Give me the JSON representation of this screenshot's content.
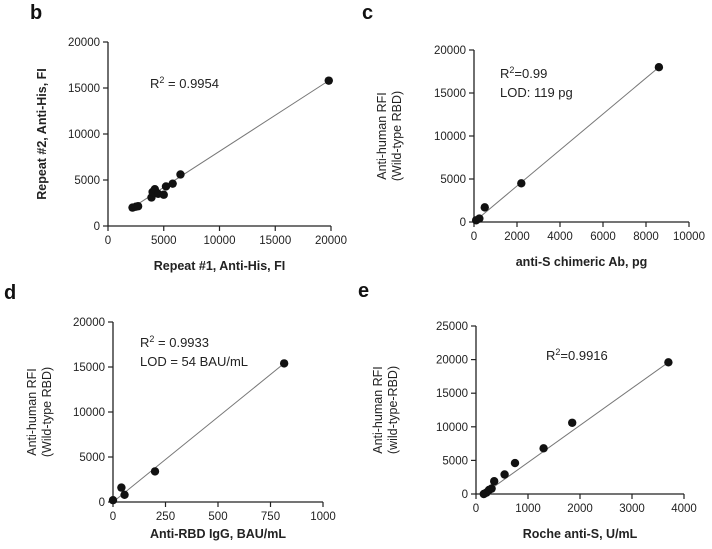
{
  "chart_data": [
    {
      "id": "b",
      "panel_label": "b",
      "type": "scatter",
      "xlabel": "Repeat #1, Anti-His, FI",
      "ylabel": "Repeat #2, Anti-His, FI",
      "xlim": [
        0,
        20000
      ],
      "ylim": [
        0,
        20000
      ],
      "x_ticks": [
        0,
        5000,
        10000,
        15000,
        20000
      ],
      "y_ticks": [
        0,
        5000,
        10000,
        15000,
        20000
      ],
      "x_tick_labels": [
        "0",
        "5000",
        "10000",
        "15000",
        "20000"
      ],
      "y_tick_labels": [
        "0",
        "5000",
        "10000",
        "15000",
        "20000"
      ],
      "annotations": [
        "R2 = 0.9954"
      ],
      "fit_line": [
        [
          2000,
          1850
        ],
        [
          19800,
          15800
        ]
      ],
      "points": [
        {
          "x": 2200,
          "y": 2000
        },
        {
          "x": 2500,
          "y": 2100
        },
        {
          "x": 2700,
          "y": 2150
        },
        {
          "x": 3900,
          "y": 3100
        },
        {
          "x": 4000,
          "y": 3700
        },
        {
          "x": 4200,
          "y": 4000
        },
        {
          "x": 4500,
          "y": 3500
        },
        {
          "x": 5000,
          "y": 3400
        },
        {
          "x": 5200,
          "y": 4300
        },
        {
          "x": 5800,
          "y": 4600
        },
        {
          "x": 6500,
          "y": 5600
        },
        {
          "x": 19800,
          "y": 15800
        }
      ]
    },
    {
      "id": "c",
      "panel_label": "c",
      "type": "scatter",
      "xlabel": "anti-S chimeric Ab, pg",
      "ylabel": "Anti-human RFI (Wild-type RBD)",
      "ylabel_lines": [
        "Anti-human RFI",
        "(Wild-type RBD)"
      ],
      "xlim": [
        0,
        10000
      ],
      "ylim": [
        0,
        20000
      ],
      "x_ticks": [
        0,
        2000,
        4000,
        6000,
        8000,
        10000
      ],
      "y_ticks": [
        0,
        5000,
        10000,
        15000,
        20000
      ],
      "x_tick_labels": [
        "0",
        "2000",
        "4000",
        "6000",
        "8000",
        "10000"
      ],
      "y_tick_labels": [
        "0",
        "5000",
        "10000",
        "15000",
        "20000"
      ],
      "annotations": [
        "R2=0.99",
        "LOD: 119 pg"
      ],
      "fit_line": [
        [
          0,
          0
        ],
        [
          8600,
          18000
        ]
      ],
      "points": [
        {
          "x": 100,
          "y": 200
        },
        {
          "x": 250,
          "y": 400
        },
        {
          "x": 500,
          "y": 1700
        },
        {
          "x": 2200,
          "y": 4500
        },
        {
          "x": 8600,
          "y": 18000
        }
      ]
    },
    {
      "id": "d",
      "panel_label": "d",
      "type": "scatter",
      "xlabel": "Anti-RBD IgG, BAU/mL",
      "ylabel": "Anti-human RFI (Wild-type RBD)",
      "ylabel_lines": [
        "Anti-human RFI",
        "(Wild-type RBD)"
      ],
      "xlim": [
        0,
        1000
      ],
      "ylim": [
        0,
        20000
      ],
      "x_ticks": [
        0,
        250,
        500,
        750,
        1000
      ],
      "y_ticks": [
        0,
        5000,
        10000,
        15000,
        20000
      ],
      "x_tick_labels": [
        "0",
        "250",
        "500",
        "750",
        "1000"
      ],
      "y_tick_labels": [
        "0",
        "5000",
        "10000",
        "15000",
        "20000"
      ],
      "annotations": [
        "R2 = 0.9933",
        "LOD = 54 BAU/mL"
      ],
      "fit_line": [
        [
          0,
          0
        ],
        [
          815,
          15400
        ]
      ],
      "points": [
        {
          "x": 0,
          "y": 200
        },
        {
          "x": 40,
          "y": 1600
        },
        {
          "x": 55,
          "y": 800
        },
        {
          "x": 200,
          "y": 3400
        },
        {
          "x": 815,
          "y": 15400
        }
      ]
    },
    {
      "id": "e",
      "panel_label": "e",
      "type": "scatter",
      "xlabel": "Roche anti-S, U/mL",
      "ylabel": "Anti-human RFI (wild-type-RBD)",
      "ylabel_lines": [
        "Anti-human RFI",
        "(wild-type-RBD)"
      ],
      "xlim": [
        0,
        4000
      ],
      "ylim": [
        0,
        25000
      ],
      "x_ticks": [
        0,
        1000,
        2000,
        3000,
        4000
      ],
      "y_ticks": [
        0,
        5000,
        10000,
        15000,
        20000,
        25000
      ],
      "x_tick_labels": [
        "0",
        "1000",
        "2000",
        "3000",
        "4000"
      ],
      "y_tick_labels": [
        "0",
        "5000",
        "10000",
        "15000",
        "20000",
        "25000"
      ],
      "annotations": [
        "R2=0.9916"
      ],
      "fit_line": [
        [
          150,
          0
        ],
        [
          3700,
          19600
        ]
      ],
      "points": [
        {
          "x": 150,
          "y": 0
        },
        {
          "x": 200,
          "y": 200
        },
        {
          "x": 250,
          "y": 600
        },
        {
          "x": 300,
          "y": 800
        },
        {
          "x": 350,
          "y": 1900
        },
        {
          "x": 550,
          "y": 2900
        },
        {
          "x": 750,
          "y": 4600
        },
        {
          "x": 1300,
          "y": 6800
        },
        {
          "x": 1850,
          "y": 10600
        },
        {
          "x": 3700,
          "y": 19600
        }
      ]
    }
  ]
}
